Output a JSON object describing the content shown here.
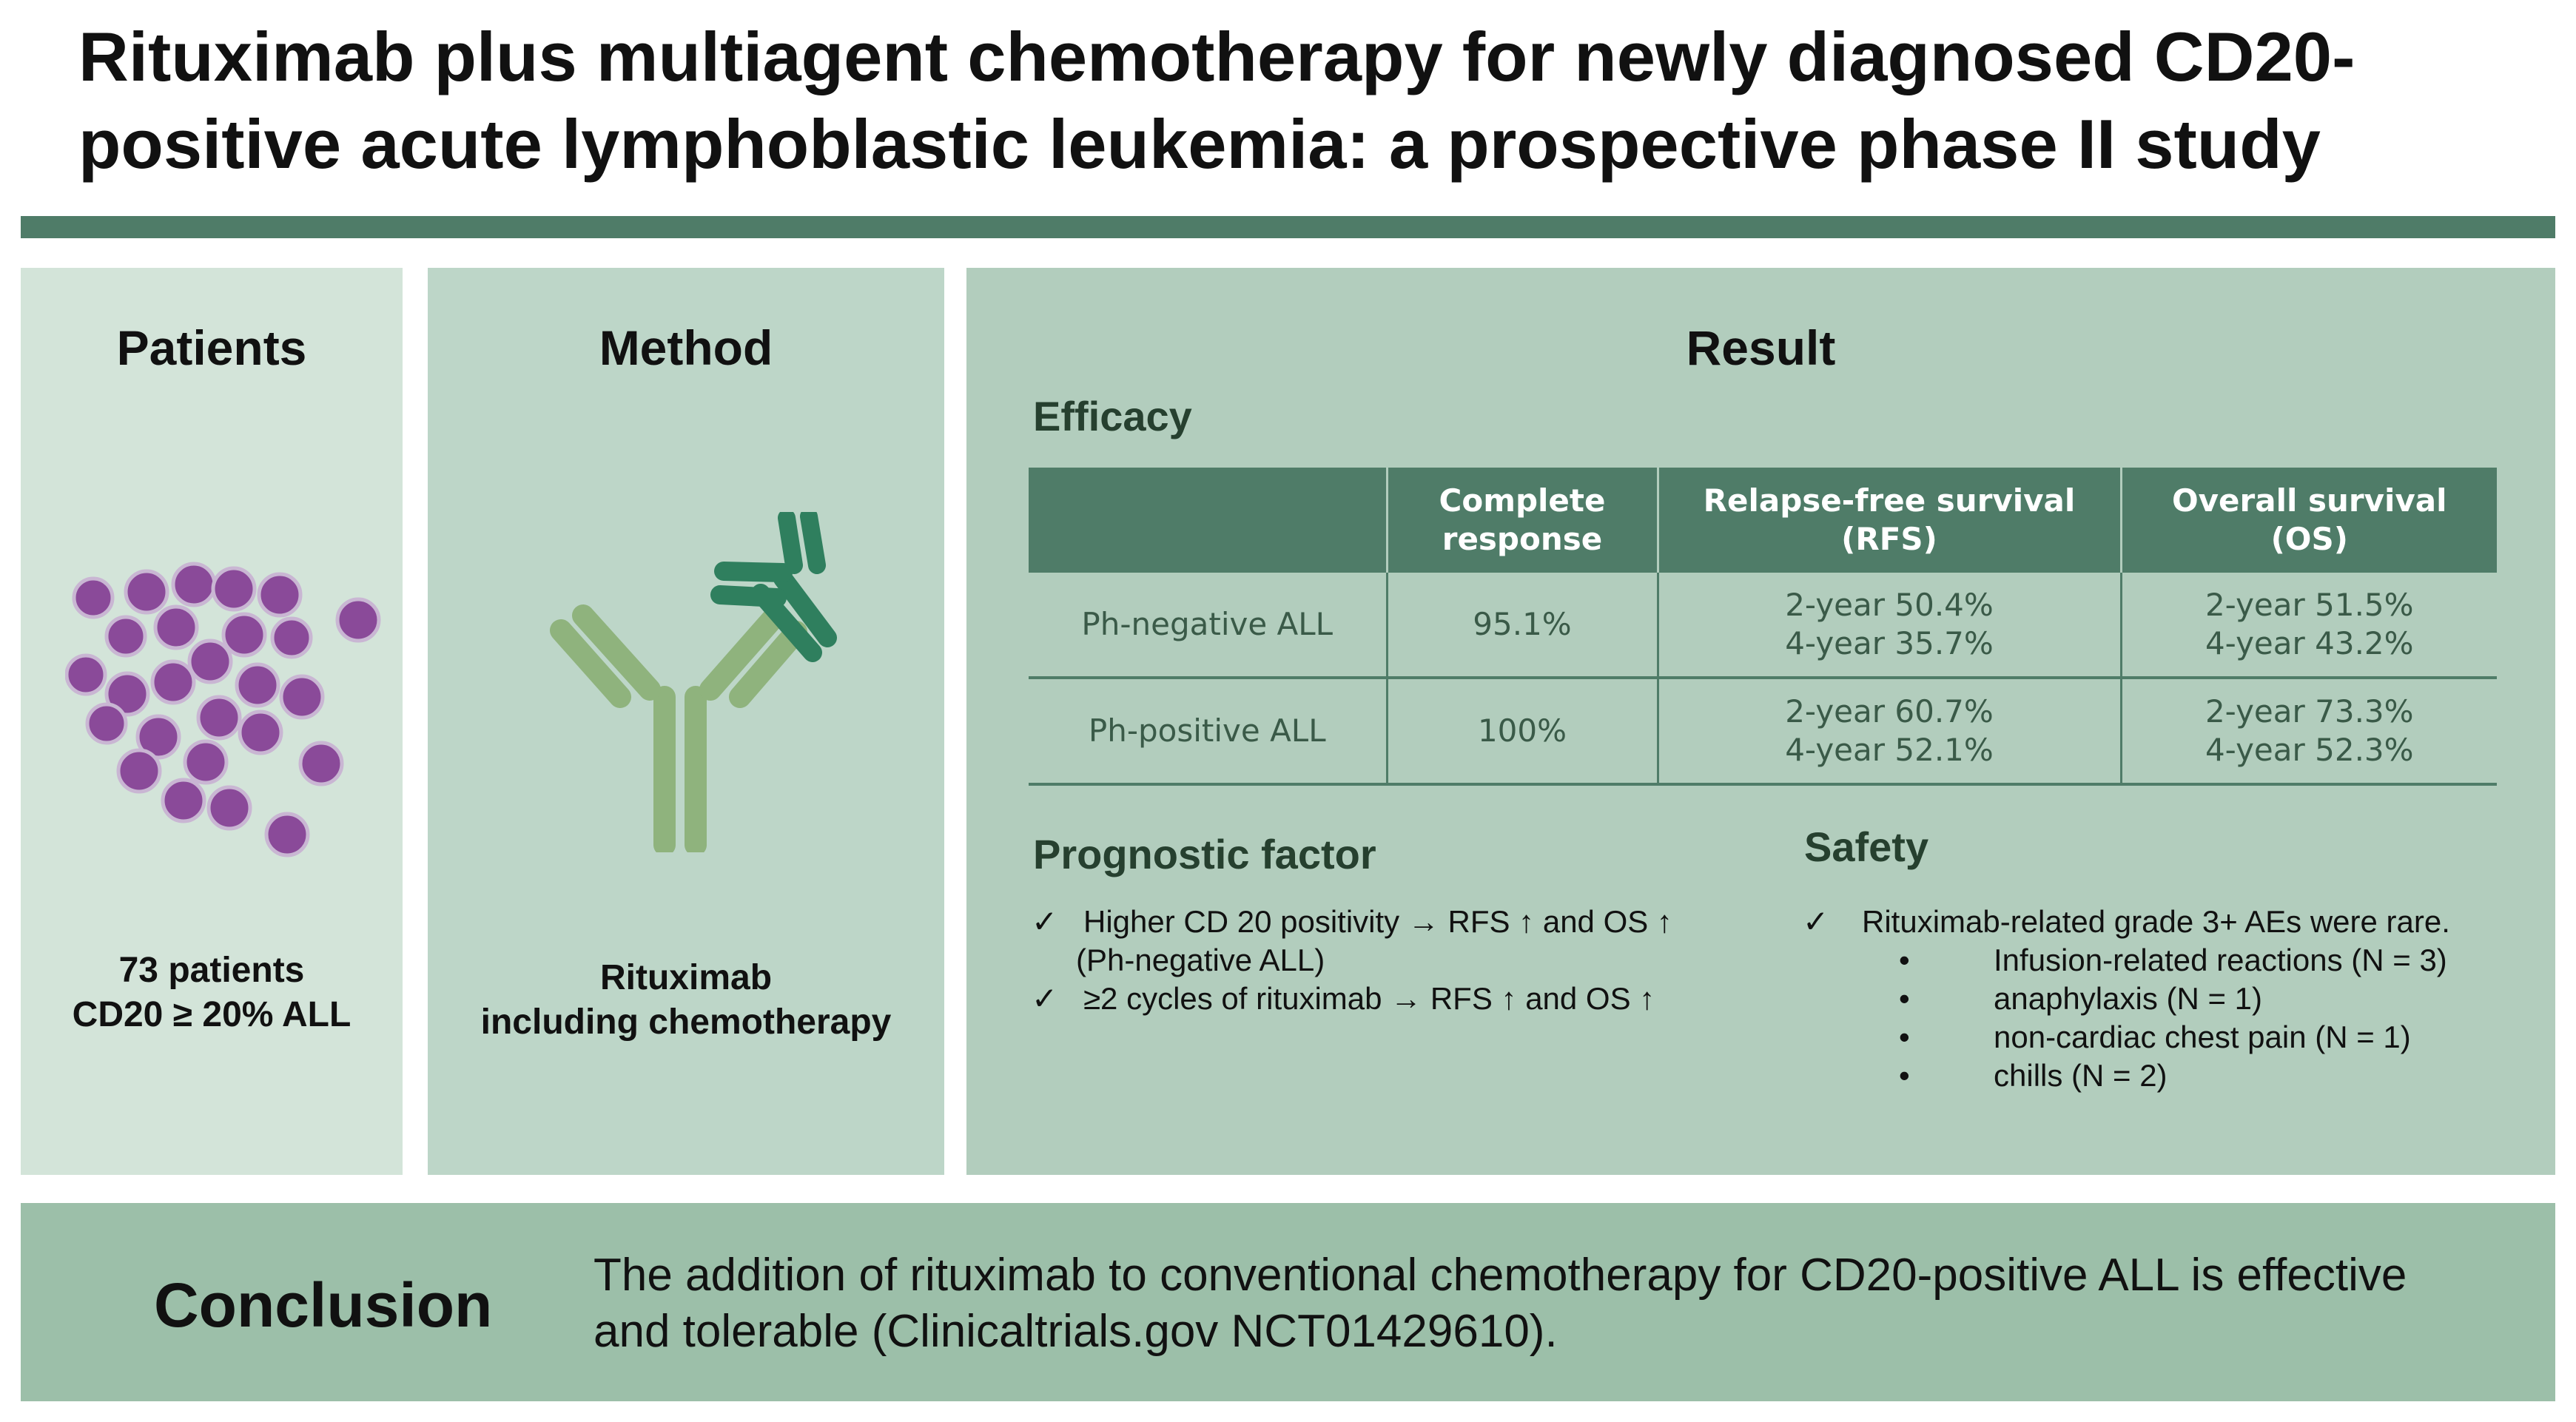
{
  "title": {
    "line1": "Rituximab plus multiagent chemotherapy for newly diagnosed CD20-",
    "line2": "positive acute lymphoblastic leukemia: a prospective phase II study"
  },
  "patients": {
    "heading": "Patients",
    "caption_line1": "73 patients",
    "caption_line2": "CD20 ≥ 20% ALL"
  },
  "method": {
    "heading": "Method",
    "caption_line1": "Rituximab",
    "caption_line2": "including chemotherapy"
  },
  "result": {
    "heading": "Result",
    "efficacy": {
      "title": "Efficacy",
      "headers": [
        {
          "line1": "",
          "line2": ""
        },
        {
          "line1": "Complete",
          "line2": "response"
        },
        {
          "line1": "Relapse-free survival",
          "line2": "(RFS)"
        },
        {
          "line1": "Overall survival",
          "line2": "(OS)"
        }
      ],
      "rows": [
        {
          "group": "Ph-negative ALL",
          "cr": "95.1%",
          "rfs1": "2-year 50.4%",
          "rfs2": "4-year 35.7%",
          "os1": "2-year 51.5%",
          "os2": "4-year 43.2%"
        },
        {
          "group": "Ph-positive ALL",
          "cr": "100%",
          "rfs1": "2-year 60.7%",
          "rfs2": "4-year 52.1%",
          "os1": "2-year 73.3%",
          "os2": "4-year 52.3%"
        }
      ]
    },
    "prognostic": {
      "title": "Prognostic factor",
      "items": [
        {
          "text": "Higher CD 20 positivity  → RFS ↑ and OS ↑",
          "sub": "(Ph-negative ALL)"
        },
        {
          "text": "≥2 cycles of rituximab → RFS ↑ and OS ↑",
          "sub": ""
        }
      ]
    },
    "safety": {
      "title": "Safety",
      "main": "Rituximab-related grade 3+ AEs were rare.",
      "bullets": [
        "Infusion-related reactions (N = 3)",
        "anaphylaxis (N = 1)",
        "non-cardiac chest pain (N = 1)",
        "chills (N = 2)"
      ]
    }
  },
  "conclusion": {
    "heading": "Conclusion",
    "line1": "The addition of rituximab to conventional chemotherapy for CD20-positive ALL is effective",
    "line2": "and tolerable (Clinicaltrials.gov NCT01429610)."
  },
  "colors": {
    "dark_green": "#4f7c68",
    "cell_purple": "#8a4a99",
    "antibody_light": "#8fb37d",
    "antibody_dark": "#2f7f5e"
  },
  "symbols": {
    "check": "✓",
    "bullet": "•"
  }
}
